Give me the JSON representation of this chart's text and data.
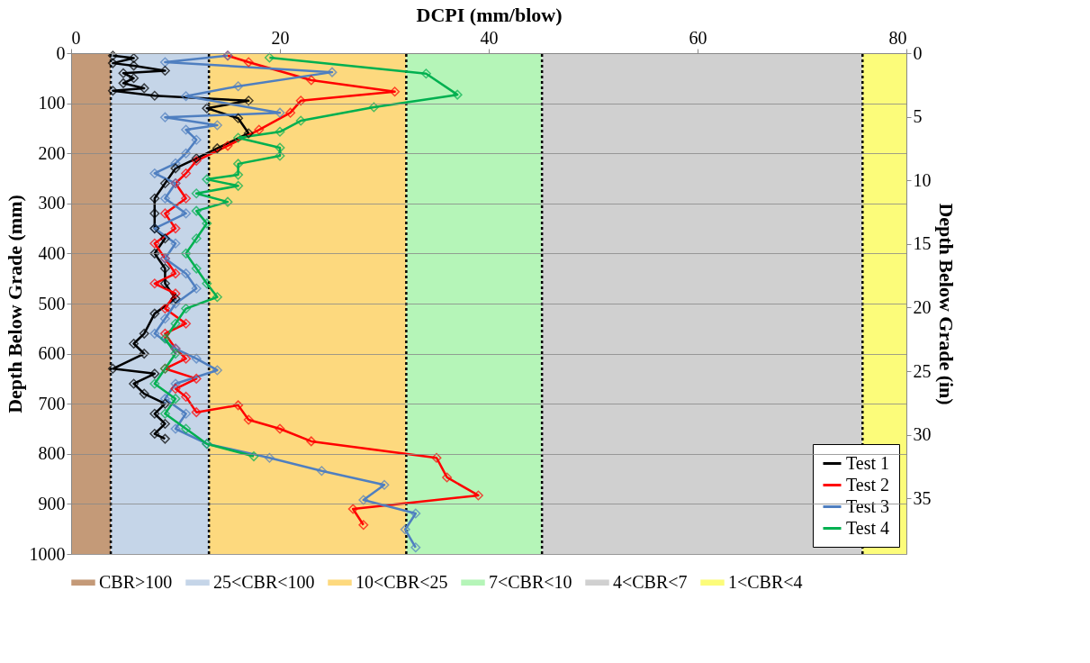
{
  "chart_data": {
    "type": "line",
    "xlabel": "DCPI (mm/blow)",
    "ylabel": "Depth Below Grade (mm)",
    "y2label": "Depth Below Grade (in)",
    "xlim": [
      0,
      80
    ],
    "xticks": [
      0,
      20,
      40,
      60,
      80
    ],
    "ylim": [
      1000,
      0
    ],
    "yticks": [
      0,
      100,
      200,
      300,
      400,
      500,
      600,
      700,
      800,
      900,
      1000
    ],
    "y2lim": [
      39.37,
      0
    ],
    "y2ticks": [
      0,
      5,
      10,
      15,
      20,
      25,
      30,
      35
    ],
    "grid": "y",
    "legend": "bottom right",
    "marker": "diamond",
    "line_style": "solid",
    "bands": [
      {
        "axis": "x",
        "from": 0,
        "to": 3.8,
        "label": "CBR>100",
        "color": "#c49a78"
      },
      {
        "axis": "x",
        "from": 3.8,
        "to": 13.2,
        "label": "25<CBR<100",
        "color": "#c5d5e8"
      },
      {
        "axis": "x",
        "from": 13.2,
        "to": 32.1,
        "label": "10<CBR<25",
        "color": "#fdd97e"
      },
      {
        "axis": "x",
        "from": 32.1,
        "to": 45.1,
        "label": "7<CBR<10",
        "color": "#b5f5b8"
      },
      {
        "axis": "x",
        "from": 45.1,
        "to": 75.8,
        "label": "4<CBR<7",
        "color": "#d0d0d0"
      },
      {
        "axis": "x",
        "from": 75.8,
        "to": 80,
        "label": "1<CBR<4",
        "color": "#fcfc7a"
      }
    ],
    "ref_lines": [
      {
        "axis": "x",
        "value": 3.8,
        "color": "#000000",
        "line_style": "dotted"
      },
      {
        "axis": "x",
        "value": 13.2,
        "color": "#000000",
        "line_style": "dotted"
      },
      {
        "axis": "x",
        "value": 32.1,
        "color": "#000000",
        "line_style": "dotted"
      },
      {
        "axis": "x",
        "value": 45.1,
        "color": "#000000",
        "line_style": "dotted"
      },
      {
        "axis": "x",
        "value": 75.8,
        "color": "#000000",
        "line_style": "dotted"
      }
    ],
    "series": [
      {
        "name": "Test 1",
        "color": "#000000",
        "x": [
          4,
          6,
          4,
          6,
          9,
          5,
          6,
          5,
          7,
          4,
          8,
          17,
          13,
          16,
          17,
          14,
          12,
          10,
          9,
          8,
          8,
          8,
          9,
          8,
          9,
          9,
          10,
          8,
          7,
          6,
          7,
          4,
          8,
          6,
          7,
          9,
          8,
          9,
          8,
          9
        ],
        "values": [
          5,
          10,
          20,
          25,
          35,
          40,
          50,
          60,
          70,
          75,
          85,
          95,
          110,
          130,
          160,
          190,
          210,
          230,
          260,
          290,
          320,
          350,
          370,
          400,
          430,
          460,
          490,
          520,
          560,
          580,
          600,
          630,
          640,
          660,
          680,
          700,
          720,
          740,
          760,
          770
        ]
      },
      {
        "name": "Test 2",
        "color": "#ff0000",
        "x": [
          15,
          17,
          23,
          31,
          22,
          21,
          18,
          15,
          12,
          11,
          10,
          11,
          9,
          10,
          8,
          9,
          10,
          8,
          10,
          9,
          11,
          9,
          10,
          11,
          9,
          12,
          10,
          11,
          12,
          16,
          17,
          20,
          23,
          35,
          36,
          39,
          27,
          28
        ],
        "values": [
          5,
          18,
          54,
          77,
          95,
          119,
          153,
          185,
          215,
          240,
          260,
          290,
          320,
          350,
          380,
          410,
          440,
          460,
          480,
          510,
          540,
          560,
          590,
          610,
          630,
          650,
          670,
          686,
          717,
          703,
          732,
          750,
          775,
          808,
          847,
          883,
          910,
          942
        ]
      },
      {
        "name": "Test 3",
        "color": "#4f7fc0",
        "x": [
          15,
          9,
          25,
          16,
          11,
          20,
          9,
          14,
          11,
          12,
          11,
          10,
          8,
          10,
          9,
          11,
          8,
          10,
          9,
          11,
          12,
          10,
          9,
          8,
          10,
          12,
          14,
          10,
          9,
          11,
          10,
          13,
          19,
          24,
          30,
          28,
          33,
          32,
          33
        ],
        "values": [
          5,
          18,
          38,
          66,
          86,
          119,
          128,
          144,
          153,
          173,
          200,
          220,
          240,
          260,
          290,
          320,
          350,
          380,
          410,
          440,
          470,
          500,
          530,
          560,
          590,
          610,
          633,
          660,
          690,
          720,
          750,
          780,
          808,
          834,
          862,
          892,
          919,
          951,
          987
        ]
      },
      {
        "name": "Test 4",
        "color": "#00b050",
        "x": [
          19,
          34,
          37,
          29,
          22,
          20,
          16,
          20,
          20,
          16,
          16,
          13,
          16,
          12,
          15,
          12,
          13,
          12,
          11,
          12,
          13,
          14,
          11,
          10,
          9,
          10,
          9,
          8,
          10,
          9,
          11,
          13,
          17.5
        ],
        "values": [
          9,
          41,
          83,
          108,
          135,
          157,
          169,
          189,
          205,
          221,
          243,
          252,
          265,
          280,
          297,
          315,
          340,
          370,
          400,
          430,
          460,
          487,
          510,
          540,
          570,
          600,
          630,
          660,
          690,
          720,
          750,
          780,
          805
        ]
      }
    ]
  }
}
